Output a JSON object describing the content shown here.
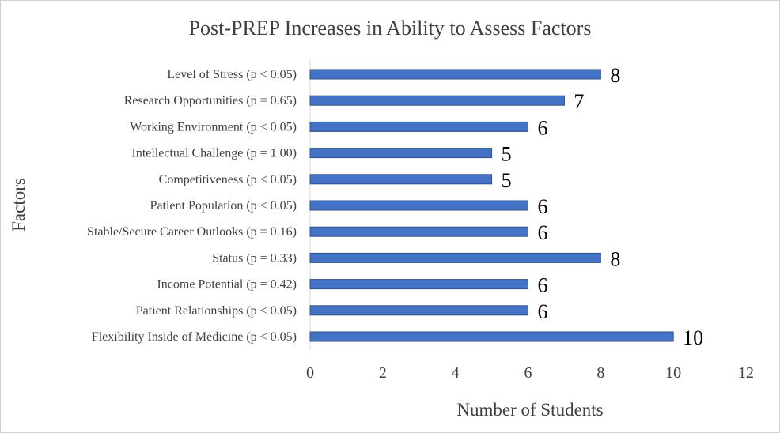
{
  "chart_data": {
    "type": "bar",
    "orientation": "horizontal",
    "title": "Post-PREP Increases in Ability to Assess Factors",
    "xlabel": "Number of Students",
    "ylabel": "Factors",
    "xlim": [
      0,
      12
    ],
    "xticks": [
      "0",
      "2",
      "4",
      "6",
      "8",
      "10",
      "12"
    ],
    "grid": false,
    "legend": "none",
    "bar_color": "#4472c4",
    "categories": [
      "Level of Stress (p < 0.05)",
      "Research Opportunities (p = 0.65)",
      "Working Environment (p < 0.05)",
      "Intellectual Challenge (p = 1.00)",
      "Competitiveness (p < 0.05)",
      "Patient Population (p < 0.05)",
      "Stable/Secure Career Outlooks (p = 0.16)",
      "Status (p = 0.33)",
      "Income Potential (p = 0.42)",
      "Patient Relationships (p < 0.05)",
      "Flexibility Inside of Medicine (p < 0.05)"
    ],
    "values": [
      8,
      7,
      6,
      5,
      5,
      6,
      6,
      8,
      6,
      6,
      10
    ],
    "data_labels": [
      "8",
      "7",
      "6",
      "5",
      "5",
      "6",
      "6",
      "8",
      "6",
      "6",
      "10"
    ]
  }
}
